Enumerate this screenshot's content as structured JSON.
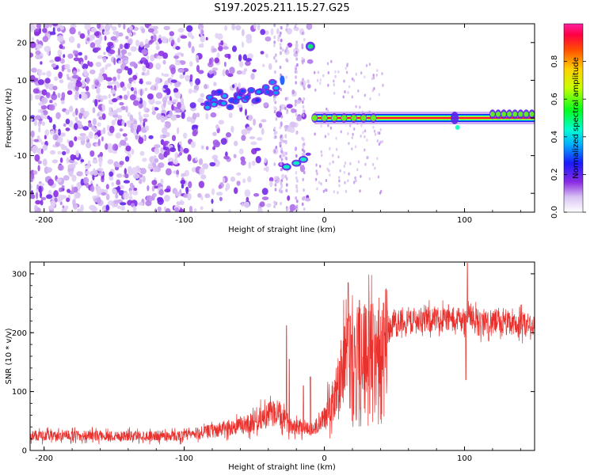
{
  "figure_title": "S197.2025.211.15.27.G25",
  "chart_data": [
    {
      "type": "heatmap",
      "xlabel": "Height of straight line (km)",
      "ylabel": "Frequency (Hz)",
      "xlim": [
        -210,
        150
      ],
      "ylim": [
        -25,
        25
      ],
      "xticks": [
        -200,
        -100,
        0,
        100
      ],
      "yticks": [
        -20,
        -10,
        0,
        10,
        20
      ],
      "colorbar": {
        "label": "Normalized spectral amplitude",
        "range": [
          0,
          1
        ],
        "ticks": [
          "0.0",
          "0.2",
          "0.4",
          "0.6",
          "0.8"
        ],
        "colormap": "rainbow"
      },
      "features": {
        "carrier_line": {
          "frequency_hz": 0,
          "x_range_km": [
            -7,
            150
          ]
        },
        "high_branch": {
          "x_km": [
            -85,
            -75,
            -65,
            -55,
            -45,
            -30
          ],
          "frequency_hz": [
            3,
            6,
            4,
            6,
            6,
            10
          ]
        },
        "low_branch": {
          "x_km": [
            -27,
            -20,
            -15
          ],
          "frequency_hz": [
            -13,
            -12,
            -11
          ]
        },
        "upper_spot": {
          "x_km": -10,
          "frequency_hz": 19
        }
      }
    },
    {
      "type": "line",
      "xlabel": "Height of straight line (km)",
      "ylabel": "SNR (10 * v/v)",
      "xlim": [
        -210,
        150
      ],
      "ylim": [
        0,
        320
      ],
      "xticks": [
        -200,
        -100,
        0,
        100
      ],
      "yticks": [
        0,
        100,
        200,
        300
      ],
      "series": [
        {
          "color": "#e8302c",
          "segments_baseline_km_snr": [
            [
              -210,
              25
            ],
            [
              -100,
              25
            ],
            [
              -75,
              35
            ],
            [
              -55,
              45
            ],
            [
              -45,
              55
            ],
            [
              -35,
              65
            ],
            [
              -25,
              45
            ],
            [
              -15,
              40
            ],
            [
              -8,
              35
            ],
            [
              0,
              55
            ],
            [
              10,
              110
            ],
            [
              15,
              160
            ],
            [
              22,
              180
            ],
            [
              30,
              175
            ],
            [
              40,
              175
            ],
            [
              45,
              200
            ],
            [
              50,
              215
            ],
            [
              70,
              220
            ],
            [
              100,
              220
            ],
            [
              103,
              230
            ],
            [
              110,
              215
            ],
            [
              150,
              210
            ]
          ],
          "spikes_km_snr": [
            [
              -27,
              212
            ],
            [
              -25,
              155
            ],
            [
              -15,
              110
            ],
            [
              -10,
              125
            ],
            [
              17,
              285
            ],
            [
              25,
              255
            ],
            [
              35,
              230
            ],
            [
              43,
              195
            ],
            [
              45,
              238
            ],
            [
              102,
              318
            ],
            [
              101,
              120
            ]
          ]
        }
      ]
    }
  ]
}
